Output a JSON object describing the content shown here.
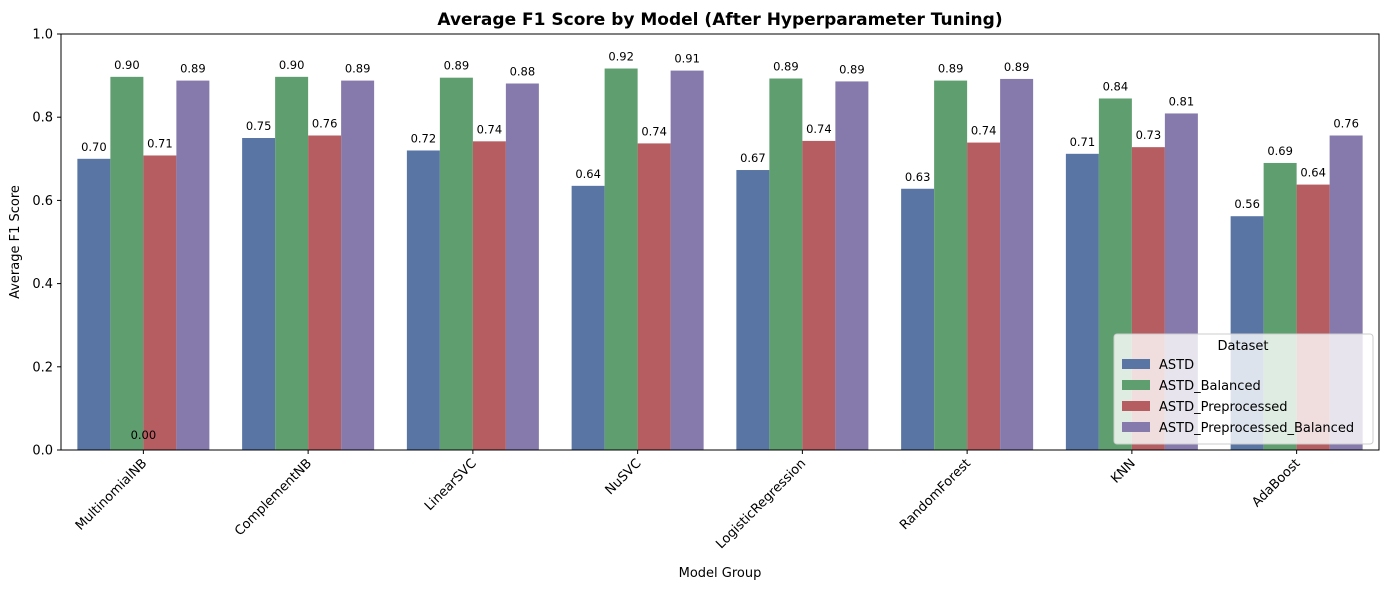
{
  "chart_data": {
    "type": "bar",
    "title": "Average F1 Score by Model (After Hyperparameter Tuning)",
    "xlabel": "Model Group",
    "ylabel": "Average F1 Score",
    "ylim": [
      0,
      1.0
    ],
    "yticks": [
      0.0,
      0.2,
      0.4,
      0.6,
      0.8,
      1.0
    ],
    "ytick_labels": [
      "0.0",
      "0.2",
      "0.4",
      "0.6",
      "0.8",
      "1.0"
    ],
    "grid": false,
    "categories": [
      "MultinomialNB",
      "ComplementNB",
      "LinearSVC",
      "NuSVC",
      "LogisticRegression",
      "RandomForest",
      "KNN",
      "AdaBoost"
    ],
    "series": [
      {
        "name": "ASTD",
        "color": "#5875a4",
        "values": [
          0.7,
          0.75,
          0.72,
          0.635,
          0.673,
          0.628,
          0.712,
          0.562
        ],
        "labels": [
          "0.70",
          "0.75",
          "0.72",
          "0.64",
          "0.67",
          "0.63",
          "0.71",
          "0.56"
        ]
      },
      {
        "name": "ASTD_Balanced",
        "color": "#5f9e6e",
        "values": [
          0.897,
          0.897,
          0.895,
          0.917,
          0.893,
          0.888,
          0.845,
          0.69
        ],
        "labels": [
          "0.90",
          "0.90",
          "0.89",
          "0.92",
          "0.89",
          "0.89",
          "0.84",
          "0.69"
        ]
      },
      {
        "name": "ASTD_Preprocessed",
        "color": "#b55d60",
        "values": [
          0.708,
          0.756,
          0.742,
          0.737,
          0.743,
          0.739,
          0.728,
          0.638
        ],
        "labels": [
          "0.71",
          "0.76",
          "0.74",
          "0.74",
          "0.74",
          "0.74",
          "0.73",
          "0.64"
        ]
      },
      {
        "name": "ASTD_Preprocessed_Balanced",
        "color": "#857aab",
        "values": [
          0.888,
          0.888,
          0.881,
          0.912,
          0.886,
          0.892,
          0.809,
          0.756
        ],
        "labels": [
          "0.89",
          "0.89",
          "0.88",
          "0.91",
          "0.89",
          "0.89",
          "0.81",
          "0.76"
        ]
      }
    ],
    "annotations": [
      {
        "text": "0.00",
        "category": "MultinomialNB",
        "y": 0.0
      }
    ],
    "legend": {
      "title": "Dataset",
      "placement": "bottom-right"
    }
  }
}
